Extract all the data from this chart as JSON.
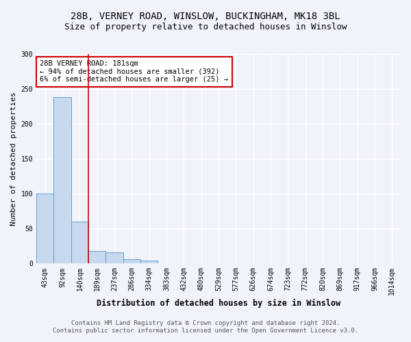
{
  "title_line1": "28B, VERNEY ROAD, WINSLOW, BUCKINGHAM, MK18 3BL",
  "title_line2": "Size of property relative to detached houses in Winslow",
  "xlabel": "Distribution of detached houses by size in Winslow",
  "ylabel": "Number of detached properties",
  "bin_labels": [
    "43sqm",
    "92sqm",
    "140sqm",
    "189sqm",
    "237sqm",
    "286sqm",
    "334sqm",
    "383sqm",
    "432sqm",
    "480sqm",
    "529sqm",
    "577sqm",
    "626sqm",
    "674sqm",
    "723sqm",
    "772sqm",
    "820sqm",
    "869sqm",
    "917sqm",
    "966sqm",
    "1014sqm"
  ],
  "bar_values": [
    100,
    238,
    60,
    18,
    16,
    6,
    4,
    0,
    0,
    0,
    0,
    0,
    0,
    0,
    0,
    0,
    0,
    0,
    0,
    0,
    0
  ],
  "bar_color": "#c8d9ee",
  "bar_edge_color": "#5a9fd4",
  "vline_color": "#cc0000",
  "annotation_text": "28B VERNEY ROAD: 181sqm\n← 94% of detached houses are smaller (392)\n6% of semi-detached houses are larger (25) →",
  "annotation_box_color": "#ffffff",
  "annotation_box_edge": "#cc0000",
  "ylim": [
    0,
    300
  ],
  "yticks": [
    0,
    50,
    100,
    150,
    200,
    250,
    300
  ],
  "footer_line1": "Contains HM Land Registry data © Crown copyright and database right 2024.",
  "footer_line2": "Contains public sector information licensed under the Open Government Licence v3.0.",
  "bg_color": "#f0f4fa",
  "grid_color": "#ffffff",
  "title_fontsize": 10,
  "subtitle_fontsize": 9,
  "axis_label_fontsize": 8,
  "tick_fontsize": 7,
  "annotation_fontsize": 7.5,
  "footer_fontsize": 6.5
}
